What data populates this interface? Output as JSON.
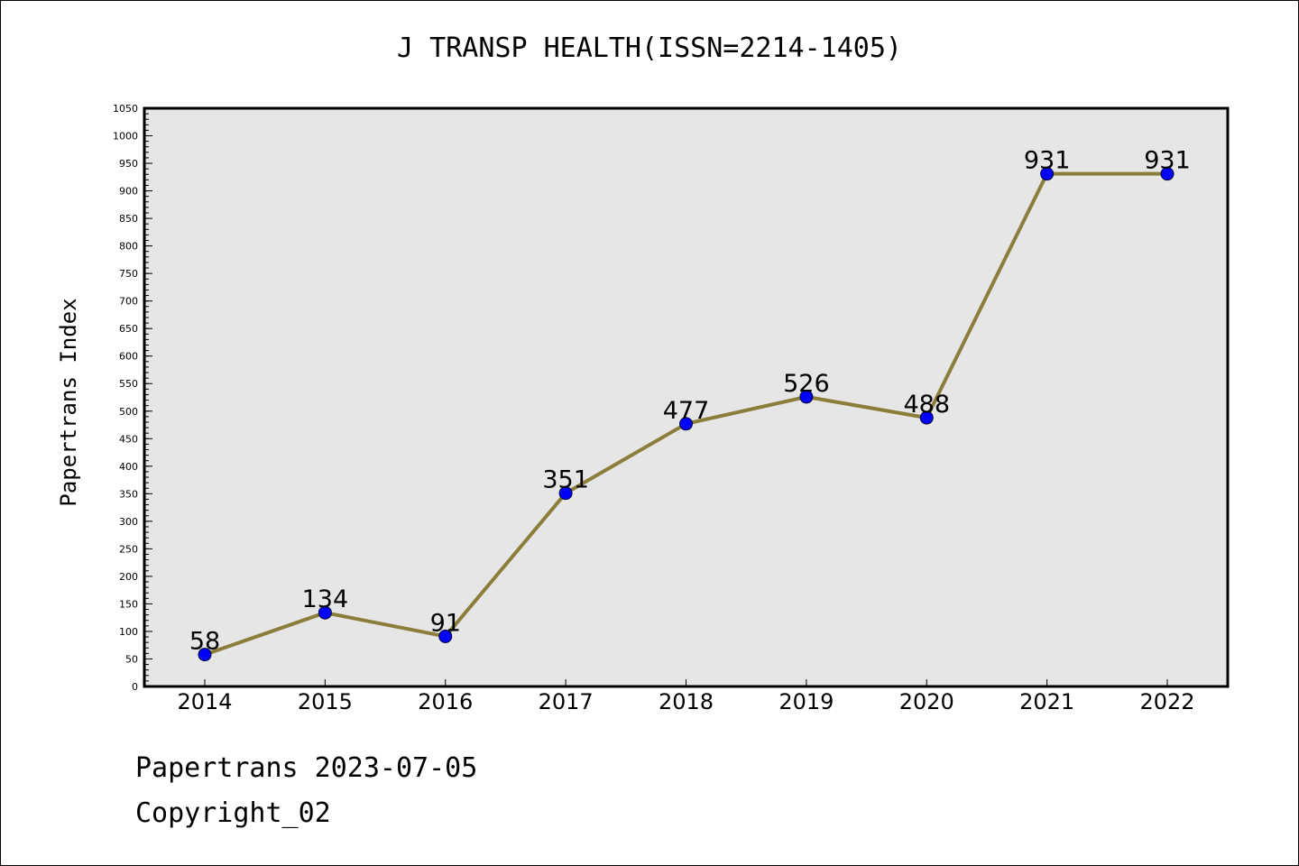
{
  "chart_data": {
    "type": "line",
    "title": "J TRANSP HEALTH(ISSN=2214-1405)",
    "xlabel": "",
    "ylabel": "Papertrans Index",
    "categories": [
      "2014",
      "2015",
      "2016",
      "2017",
      "2018",
      "2019",
      "2020",
      "2021",
      "2022"
    ],
    "values": [
      58,
      134,
      91,
      351,
      477,
      526,
      488,
      931,
      931
    ],
    "ylim": [
      0,
      1050
    ],
    "y_ticks": [
      0,
      50,
      100,
      150,
      200,
      250,
      300,
      350,
      400,
      450,
      500,
      550,
      600,
      650,
      700,
      750,
      800,
      850,
      900,
      950,
      1000,
      1050
    ],
    "y_minor_step": 10,
    "grid": false,
    "data_labels": true,
    "line_color": "#8B7D3A",
    "marker_color": "#0000FF",
    "plot_background": "#E6E6E6"
  },
  "footer": {
    "date_text": "Papertrans 2023-07-05",
    "copyright_text": "Copyright_02"
  }
}
